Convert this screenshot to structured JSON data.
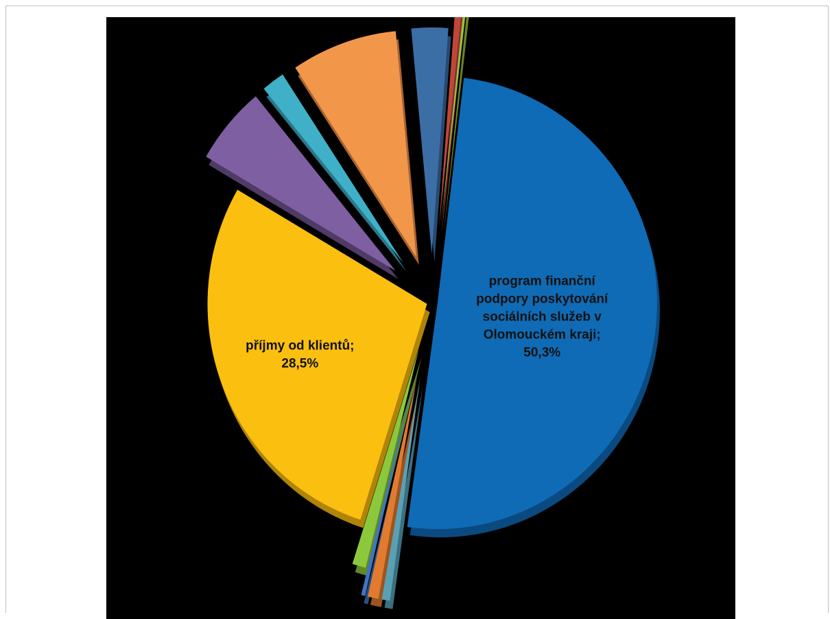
{
  "chart_data": {
    "type": "pie",
    "style": "3d-exploded",
    "background": "#000000",
    "slices": [
      {
        "id": "program",
        "label": "program finanční podpory poskytování sociálních služeb v Olomouckém kraji",
        "percent_text": "50,3%",
        "value": 50.3,
        "color": "#0f6bb5",
        "side": "#0a4a80"
      },
      {
        "id": "s2",
        "label": "",
        "value": 0.6,
        "color": "#5aa0b4",
        "side": "#3a7080"
      },
      {
        "id": "s3",
        "label": "",
        "value": 0.8,
        "color": "#e07b30",
        "side": "#9c5420"
      },
      {
        "id": "s4",
        "label": "",
        "value": 0.3,
        "color": "#3f74c4",
        "side": "#2a5088"
      },
      {
        "id": "s5",
        "label": "",
        "value": 1.0,
        "color": "#8cc83c",
        "side": "#5f8a28"
      },
      {
        "id": "klienti",
        "label": "příjmy od klientů",
        "percent_text": "28,5%",
        "value": 28.5,
        "color": "#fbbf0f",
        "side": "#b08408"
      },
      {
        "id": "s7",
        "label": "",
        "value": 5.6,
        "color": "#7e5fa2",
        "side": "#4f3b66"
      },
      {
        "id": "s8",
        "label": "",
        "value": 1.7,
        "color": "#3fb0c8",
        "side": "#2a788a"
      },
      {
        "id": "s9",
        "label": "",
        "value": 7.8,
        "color": "#f2974a",
        "side": "#a86430"
      },
      {
        "id": "s10",
        "label": "",
        "value": 2.7,
        "color": "#3c6ea6",
        "side": "#284a70"
      },
      {
        "id": "s11",
        "label": "",
        "value": 0.5,
        "color": "#c0463a",
        "side": "#803028"
      },
      {
        "id": "s12",
        "label": "",
        "value": 0.2,
        "color": "#9ac040",
        "side": "#688228"
      }
    ]
  }
}
